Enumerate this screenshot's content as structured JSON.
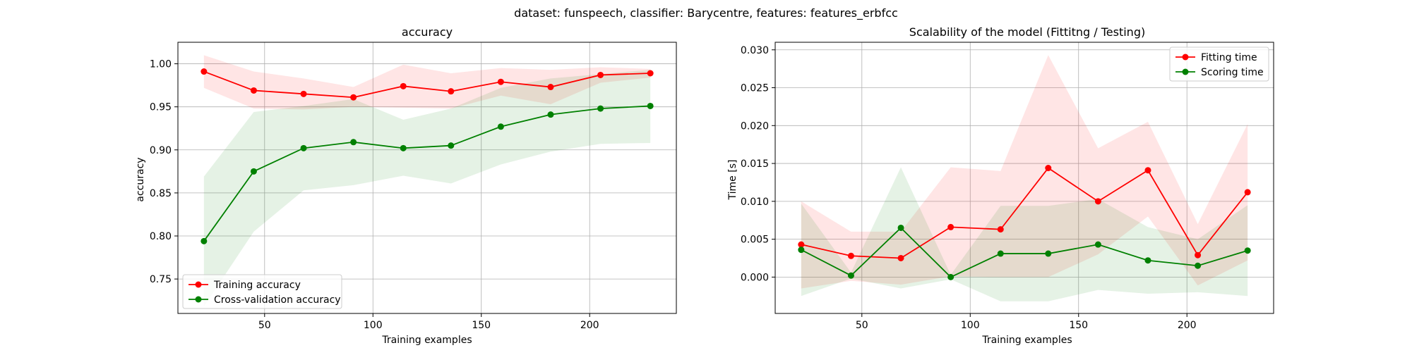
{
  "suptitle": "dataset: funspeech, classifier: Barycentre, features: features_erbfcc",
  "colors": {
    "train": "#ff0000",
    "cv": "#008000"
  },
  "chart_data": [
    {
      "type": "line",
      "title": "accuracy",
      "xlabel": "Training examples",
      "ylabel": "accuracy",
      "xlim": [
        10,
        240
      ],
      "ylim": [
        0.71,
        1.025
      ],
      "xticks": [
        50,
        100,
        150,
        200
      ],
      "yticks": [
        0.75,
        0.8,
        0.85,
        0.9,
        0.95,
        1.0
      ],
      "ytick_decimals": 2,
      "grid": true,
      "legend_position": "lower-left",
      "x": [
        22,
        45,
        68,
        91,
        114,
        136,
        159,
        182,
        205,
        228
      ],
      "series": [
        {
          "name": "Training accuracy",
          "color": "#ff0000",
          "values": [
            0.991,
            0.969,
            0.965,
            0.961,
            0.974,
            0.968,
            0.979,
            0.973,
            0.987,
            0.989
          ],
          "band_lower": [
            0.972,
            0.948,
            0.947,
            0.95,
            0.949,
            0.948,
            0.963,
            0.953,
            0.978,
            0.984
          ],
          "band_upper": [
            1.01,
            0.991,
            0.983,
            0.973,
            0.999,
            0.989,
            0.995,
            0.993,
            0.996,
            0.994
          ]
        },
        {
          "name": "Cross-validation accuracy",
          "color": "#008000",
          "values": [
            0.794,
            0.875,
            0.902,
            0.909,
            0.902,
            0.905,
            0.927,
            0.941,
            0.948,
            0.951
          ],
          "band_lower": [
            0.718,
            0.805,
            0.853,
            0.859,
            0.87,
            0.861,
            0.883,
            0.898,
            0.907,
            0.908
          ],
          "band_upper": [
            0.869,
            0.944,
            0.951,
            0.959,
            0.935,
            0.948,
            0.972,
            0.983,
            0.988,
            0.993
          ]
        }
      ]
    },
    {
      "type": "line",
      "title": "Scalability of the model (Fittitng / Testing)",
      "xlabel": "Training examples",
      "ylabel": "Time [s]",
      "xlim": [
        10,
        240
      ],
      "ylim": [
        -0.0048,
        0.031
      ],
      "xticks": [
        50,
        100,
        150,
        200
      ],
      "yticks": [
        0.0,
        0.005,
        0.01,
        0.015,
        0.02,
        0.025,
        0.03
      ],
      "ytick_decimals": 3,
      "grid": true,
      "legend_position": "upper-right",
      "x": [
        22,
        45,
        68,
        91,
        114,
        136,
        159,
        182,
        205,
        228
      ],
      "series": [
        {
          "name": "Fitting time",
          "color": "#ff0000",
          "values": [
            0.0043,
            0.0028,
            0.0025,
            0.0066,
            0.0063,
            0.0144,
            0.01,
            0.0141,
            0.0029,
            0.0112
          ],
          "band_lower": [
            -0.0015,
            -0.0005,
            -0.001,
            0.0001,
            0.0,
            0.0,
            0.003,
            0.008,
            -0.0011,
            0.0022
          ],
          "band_upper": [
            0.01,
            0.006,
            0.006,
            0.0145,
            0.014,
            0.0293,
            0.017,
            0.0205,
            0.007,
            0.0202
          ]
        },
        {
          "name": "Scoring time",
          "color": "#008000",
          "values": [
            0.0036,
            0.0002,
            0.0065,
            0.0,
            0.0031,
            0.0031,
            0.0043,
            0.0022,
            0.0015,
            0.0035
          ],
          "band_lower": [
            -0.0025,
            -0.0002,
            -0.0015,
            -0.0003,
            -0.0032,
            -0.0032,
            -0.0017,
            -0.0022,
            -0.002,
            -0.0025
          ],
          "band_upper": [
            0.0097,
            0.0006,
            0.0145,
            0.0003,
            0.0094,
            0.0094,
            0.0103,
            0.0066,
            0.005,
            0.0095
          ]
        }
      ]
    }
  ]
}
